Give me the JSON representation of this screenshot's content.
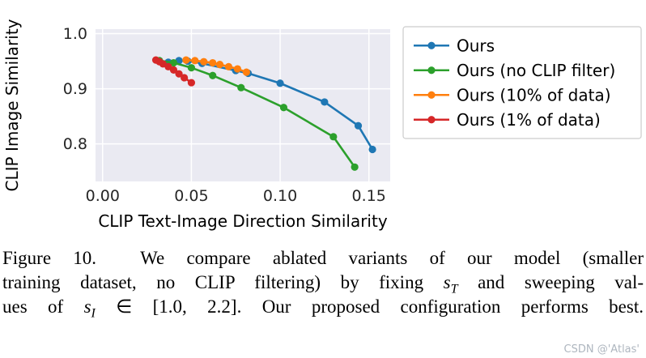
{
  "watermark": "CSDN @'Atlas'",
  "caption": {
    "lines": [
      {
        "pre": "Figure 10.  We compare ablated variants of our model (smaller"
      },
      {
        "pre": "training dataset, no CLIP filtering) by fixing ",
        "math_base": "s",
        "math_sub": "T",
        "post": " and sweeping val-"
      },
      {
        "pre": "ues of ",
        "math_base": "s",
        "math_sub": "I",
        "post": " ∈ [1.0, 2.2]. Our proposed configuration performs best."
      }
    ]
  },
  "chart_data": {
    "type": "line",
    "title": "",
    "xlabel": "CLIP Text-Image Direction Similarity",
    "ylabel": "CLIP Image Similarity",
    "xlim": [
      -0.004,
      0.162
    ],
    "ylim": [
      0.732,
      1.008
    ],
    "xticks": [
      {
        "value": 0.0,
        "label": "0.00"
      },
      {
        "value": 0.05,
        "label": "0.05"
      },
      {
        "value": 0.1,
        "label": "0.10"
      },
      {
        "value": 0.15,
        "label": "0.15"
      }
    ],
    "yticks": [
      {
        "value": 0.8,
        "label": "0.8"
      },
      {
        "value": 0.9,
        "label": "0.9"
      },
      {
        "value": 1.0,
        "label": "1.0"
      }
    ],
    "grid": true,
    "plot_bg": "#eaeaf2",
    "grid_color": "#ffffff",
    "legend_position": "outside-right",
    "series": [
      {
        "name": "Ours",
        "color": "#1f77b4",
        "x": [
          0.037,
          0.043,
          0.048,
          0.056,
          0.075,
          0.082,
          0.1,
          0.125,
          0.144,
          0.152
        ],
        "y": [
          0.948,
          0.951,
          0.95,
          0.946,
          0.933,
          0.928,
          0.91,
          0.876,
          0.833,
          0.79
        ]
      },
      {
        "name": "Ours (no CLIP filter)",
        "color": "#2ca02c",
        "x": [
          0.032,
          0.04,
          0.05,
          0.062,
          0.078,
          0.102,
          0.13,
          0.142
        ],
        "y": [
          0.951,
          0.947,
          0.938,
          0.924,
          0.902,
          0.866,
          0.813,
          0.758
        ]
      },
      {
        "name": "Ours (10% of data)",
        "color": "#ff7f0e",
        "x": [
          0.047,
          0.052,
          0.057,
          0.062,
          0.066,
          0.071,
          0.076,
          0.081
        ],
        "y": [
          0.952,
          0.951,
          0.949,
          0.947,
          0.944,
          0.94,
          0.936,
          0.93
        ]
      },
      {
        "name": "Ours (1% of data)",
        "color": "#d62728",
        "x": [
          0.03,
          0.032,
          0.034,
          0.037,
          0.04,
          0.043,
          0.046,
          0.05
        ],
        "y": [
          0.952,
          0.949,
          0.945,
          0.94,
          0.934,
          0.927,
          0.92,
          0.911
        ]
      }
    ]
  }
}
